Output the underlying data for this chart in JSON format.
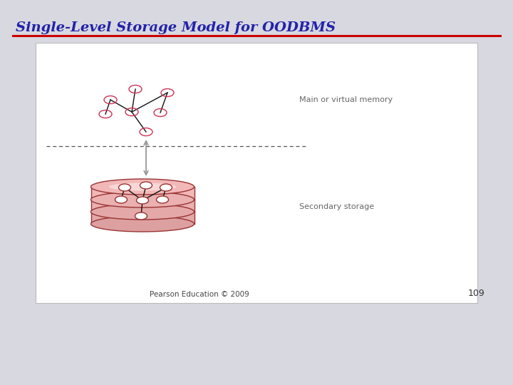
{
  "title": "Single-Level Storage Model for OODBMS",
  "title_color": "#2222aa",
  "title_fontsize": 14,
  "bg_color": "#d8d8e0",
  "slide_bg": "#ffffff",
  "red_line_color": "#cc0000",
  "footer_text": "Pearson Education © 2009",
  "page_number": "109",
  "main_memory_label": "Main or virtual memory",
  "secondary_label": "Secondary storage",
  "label_color": "#666666",
  "label_fontsize": 8,
  "node_ec_mem": "#cc3355",
  "disk_border": "#993333",
  "arrow_color": "#999999",
  "line_color": "#111111",
  "dashed_line_color": "#555555",
  "white_fill": "#ffffff",
  "disk_fill_colors": [
    "#f2b8b8",
    "#ebb0b0",
    "#e4a8a8",
    "#dda0a0"
  ],
  "disk_highlight": "#fce0e0"
}
